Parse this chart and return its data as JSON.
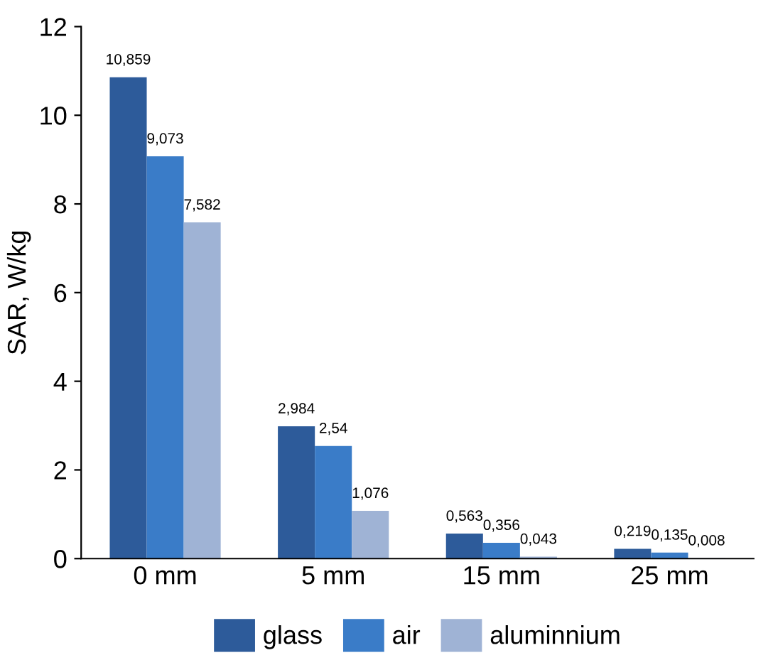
{
  "chart_data": {
    "type": "bar",
    "ylabel": "SAR, W/kg",
    "categories": [
      "0 mm",
      "5 mm",
      "15 mm",
      "25 mm"
    ],
    "series": [
      {
        "name": "glass",
        "color": "#2d5b9a",
        "values": [
          10.859,
          2.984,
          0.563,
          0.219
        ],
        "value_labels": [
          "10,859",
          "2,984",
          "0,563",
          "0,219"
        ]
      },
      {
        "name": "air",
        "color": "#3a7cc8",
        "values": [
          9.073,
          2.54,
          0.356,
          0.135
        ],
        "value_labels": [
          "9,073",
          "2,54",
          "0,356",
          "0,135"
        ]
      },
      {
        "name": "aluminnium",
        "color": "#9fb3d5",
        "values": [
          7.582,
          1.076,
          0.043,
          0.008
        ],
        "value_labels": [
          "7,582",
          "1,076",
          "0,043",
          "0,008"
        ]
      }
    ],
    "ylim": [
      0,
      12
    ],
    "yticks": [
      0,
      2,
      4,
      6,
      8,
      10,
      12
    ],
    "grid": false,
    "legend": "bottom"
  }
}
